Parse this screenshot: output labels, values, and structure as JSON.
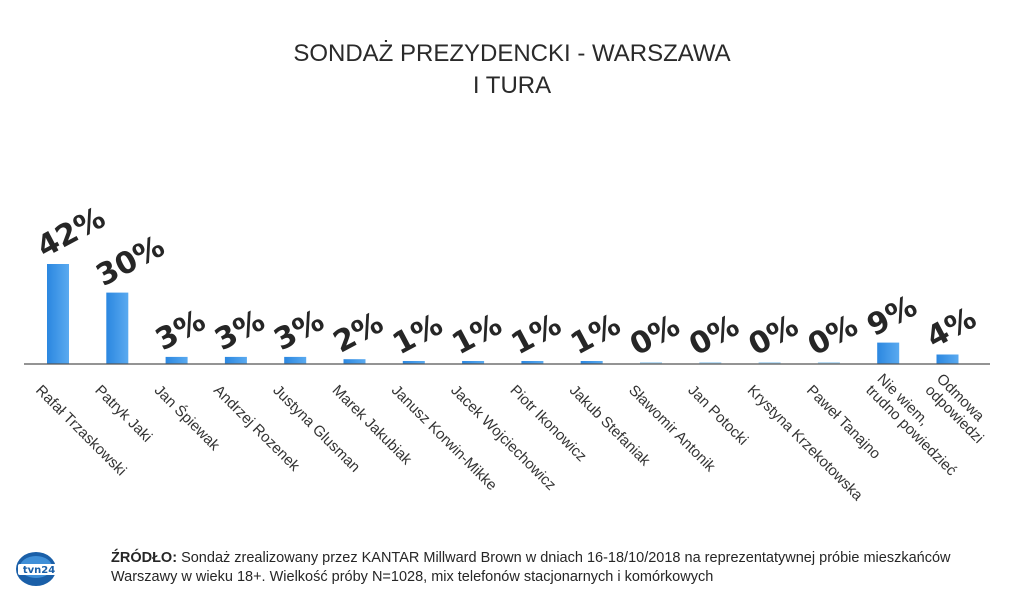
{
  "chart_data": {
    "type": "bar",
    "title": [
      "SONDAŻ PREZYDENCKI - WARSZAWA",
      "I TURA"
    ],
    "categories": [
      [
        "Rafał Trzaskowski"
      ],
      [
        "Patryk Jaki"
      ],
      [
        "Jan Śpiewak"
      ],
      [
        "Andrzej Rozenek"
      ],
      [
        "Justyna Glusman"
      ],
      [
        "Marek Jakubiak"
      ],
      [
        "Janusz Korwin-Mikke"
      ],
      [
        "Jacek Wojciechowicz"
      ],
      [
        "Piotr Ikonowicz"
      ],
      [
        "Jakub Stefaniak"
      ],
      [
        "Sławomir Antonik"
      ],
      [
        "Jan Potocki"
      ],
      [
        "Krystyna Krzekotowska"
      ],
      [
        "Paweł Tanajno"
      ],
      [
        "Nie wiem,",
        "trudno powiedzieć"
      ],
      [
        "Odmowa",
        "odpowiedzi"
      ]
    ],
    "values": [
      42,
      30,
      3,
      3,
      3,
      2,
      1,
      1,
      1,
      1,
      0,
      0,
      0,
      0,
      9,
      4
    ],
    "value_labels": [
      "42%",
      "30%",
      "3%",
      "3%",
      "3%",
      "2%",
      "1%",
      "1%",
      "1%",
      "1%",
      "0%",
      "0%",
      "0%",
      "0%",
      "9%",
      "4%"
    ],
    "ylim": [
      0,
      42
    ],
    "grid": false,
    "bar_color": "#2b87e0",
    "bar_color_light": "#5aaaf0",
    "zero_bar_color": "#b9dcf5"
  },
  "source": {
    "label": "ŹRÓDŁO:",
    "text": " Sondaż zrealizowany przez KANTAR Millward Brown w dniach 16-18/10/2018 na reprezentatywnej próbie mieszkańców Warszawy w wieku 18+. Wielkość próby N=1028, mix telefonów stacjonarnych i komórkowych"
  },
  "logo": {
    "text": "tvn24",
    "icon": "tvn24-logo-icon",
    "color": "#1a5fa8"
  }
}
